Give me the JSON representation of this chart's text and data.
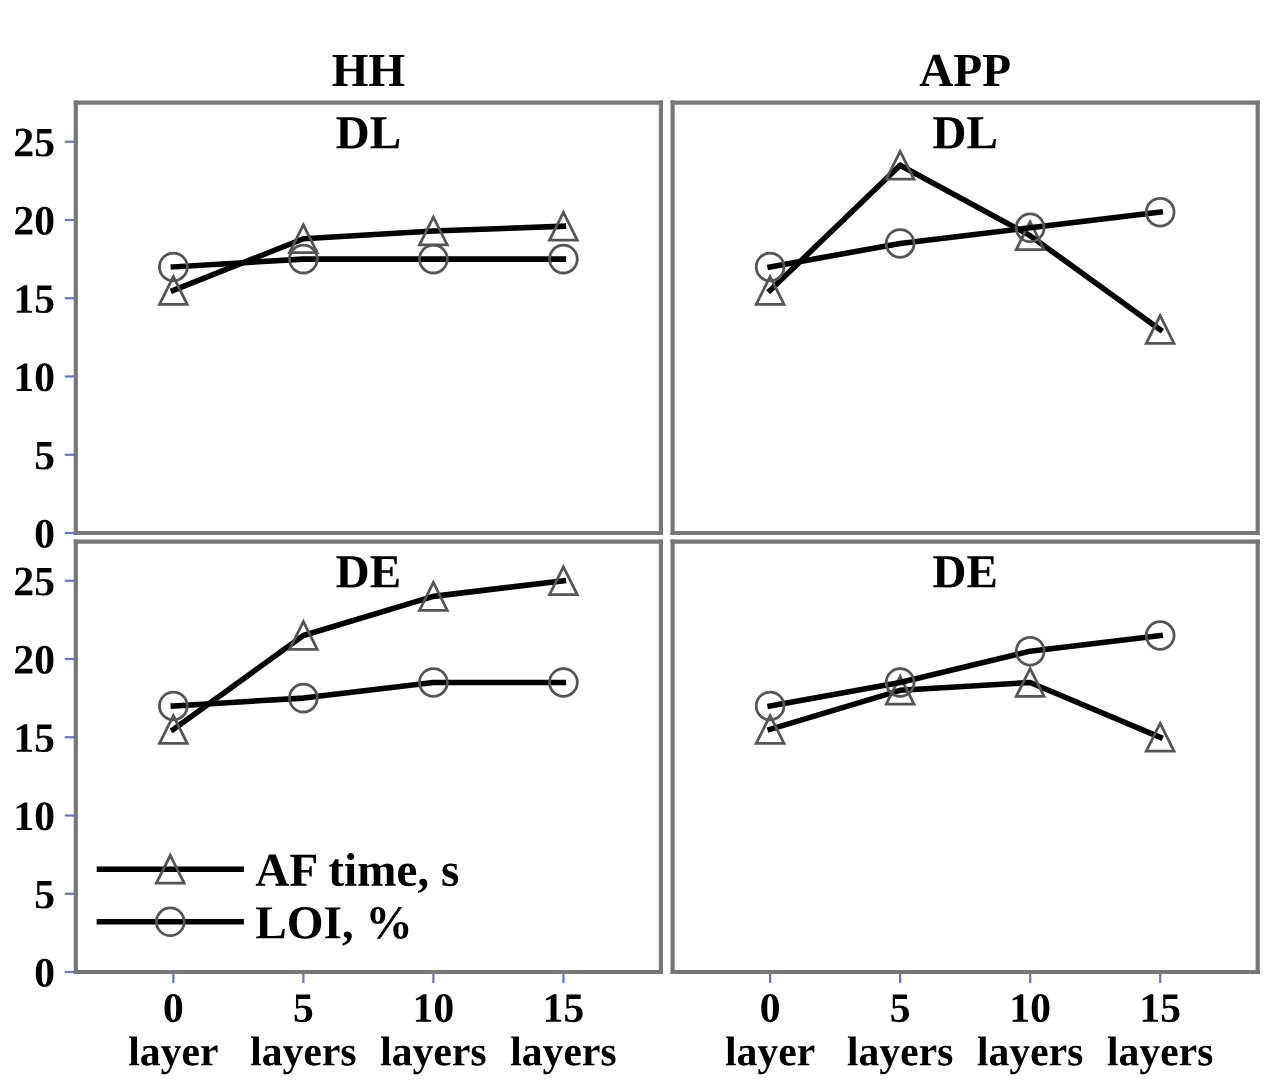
{
  "chart_data": [
    {
      "type": "line",
      "title": "HH",
      "subtitle": "DL",
      "x": [
        0,
        5,
        10,
        15
      ],
      "xlim": [
        -3.75,
        18.75
      ],
      "ylim": [
        0,
        27.5
      ],
      "yticks": [
        0,
        5,
        10,
        15,
        20,
        25
      ],
      "tick_labels": "y",
      "grid": false,
      "legend": false,
      "line_style": "solid",
      "series": [
        {
          "color": "#000000",
          "marker": "triangle",
          "values": [
            15.5,
            18.8,
            19.3,
            19.6
          ]
        },
        {
          "color": "#000000",
          "marker": "circle",
          "values": [
            17,
            17.5,
            17.5,
            17.5
          ]
        }
      ]
    },
    {
      "type": "line",
      "title": "APP",
      "subtitle": "DL",
      "x": [
        0,
        5,
        10,
        15
      ],
      "xlim": [
        -3.75,
        18.75
      ],
      "ylim": [
        0,
        27.5
      ],
      "yticks": [
        0,
        5,
        10,
        15,
        20,
        25
      ],
      "tick_labels": false,
      "grid": false,
      "legend": false,
      "line_style": "solid",
      "series": [
        {
          "color": "#000000",
          "marker": "triangle",
          "values": [
            15.5,
            23.5,
            19,
            13
          ]
        },
        {
          "color": "#000000",
          "marker": "circle",
          "values": [
            17,
            18.5,
            19.5,
            20.5
          ]
        }
      ]
    },
    {
      "type": "line",
      "subtitle": "DE",
      "x": [
        0,
        5,
        10,
        15
      ],
      "xlim": [
        -3.75,
        18.75
      ],
      "xticks": [
        {
          "value": 0,
          "label": "0\nlayer"
        },
        {
          "value": 5,
          "label": "5\nlayers"
        },
        {
          "value": 10,
          "label": "10\nlayers"
        },
        {
          "value": 15,
          "label": "15\nlayers"
        }
      ],
      "ylim": [
        0,
        27.5
      ],
      "yticks": [
        0,
        5,
        10,
        15,
        20,
        25
      ],
      "grid": false,
      "legend": "bottom left",
      "line_style": "solid",
      "series": [
        {
          "name": "AF time, s",
          "color": "#000000",
          "marker": "triangle",
          "values": [
            15.5,
            21.5,
            24,
            25
          ]
        },
        {
          "name": "LOI, %",
          "color": "#000000",
          "marker": "circle",
          "values": [
            17,
            17.5,
            18.5,
            18.5
          ]
        }
      ]
    },
    {
      "type": "line",
      "subtitle": "DE",
      "x": [
        0,
        5,
        10,
        15
      ],
      "xlim": [
        -3.75,
        18.75
      ],
      "xticks": [
        {
          "value": 0,
          "label": "0\nlayer"
        },
        {
          "value": 5,
          "label": "5\nlayers"
        },
        {
          "value": 10,
          "label": "10\nlayers"
        },
        {
          "value": 15,
          "label": "15\nlayers"
        }
      ],
      "ylim": [
        0,
        27.5
      ],
      "yticks": [
        0,
        5,
        10,
        15,
        20,
        25
      ],
      "tick_labels": "x",
      "grid": false,
      "legend": false,
      "line_style": "solid",
      "series": [
        {
          "color": "#000000",
          "marker": "triangle",
          "values": [
            15.5,
            18,
            18.5,
            15
          ]
        },
        {
          "color": "#000000",
          "marker": "circle",
          "values": [
            17,
            18.5,
            20.5,
            21.5
          ]
        }
      ]
    }
  ]
}
